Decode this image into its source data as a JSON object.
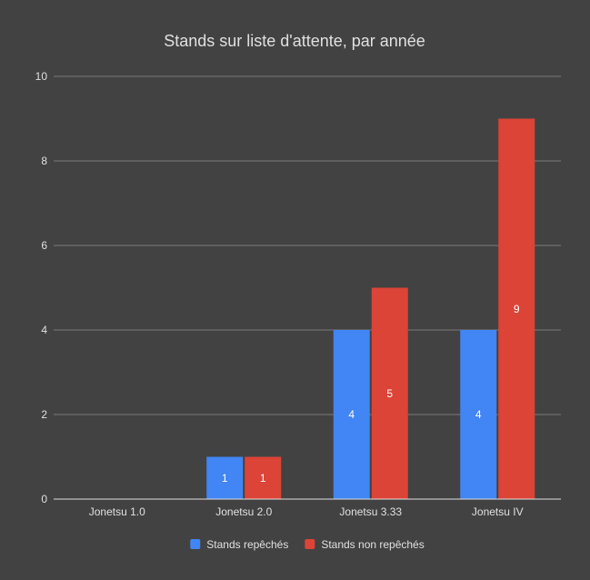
{
  "chart_data": {
    "type": "bar",
    "title": "Stands sur liste d'attente, par année",
    "categories": [
      "Jonetsu 1.0",
      "Jonetsu 2.0",
      "Jonetsu 3.33",
      "Jonetsu IV"
    ],
    "series": [
      {
        "name": "Stands repêchés",
        "values": [
          0,
          1,
          4,
          4
        ],
        "color": "#4285f4"
      },
      {
        "name": "Stands non repêchés",
        "values": [
          0,
          1,
          5,
          9
        ],
        "color": "#db4437"
      }
    ],
    "ylim": [
      0,
      10
    ],
    "yticks": [
      0,
      2,
      4,
      6,
      8,
      10
    ],
    "grid": true,
    "legend": "bottom",
    "data_labels": true
  },
  "colors": {
    "background": "#424242",
    "text": "#e0e0e0",
    "gridline": "#7a7a7a"
  }
}
